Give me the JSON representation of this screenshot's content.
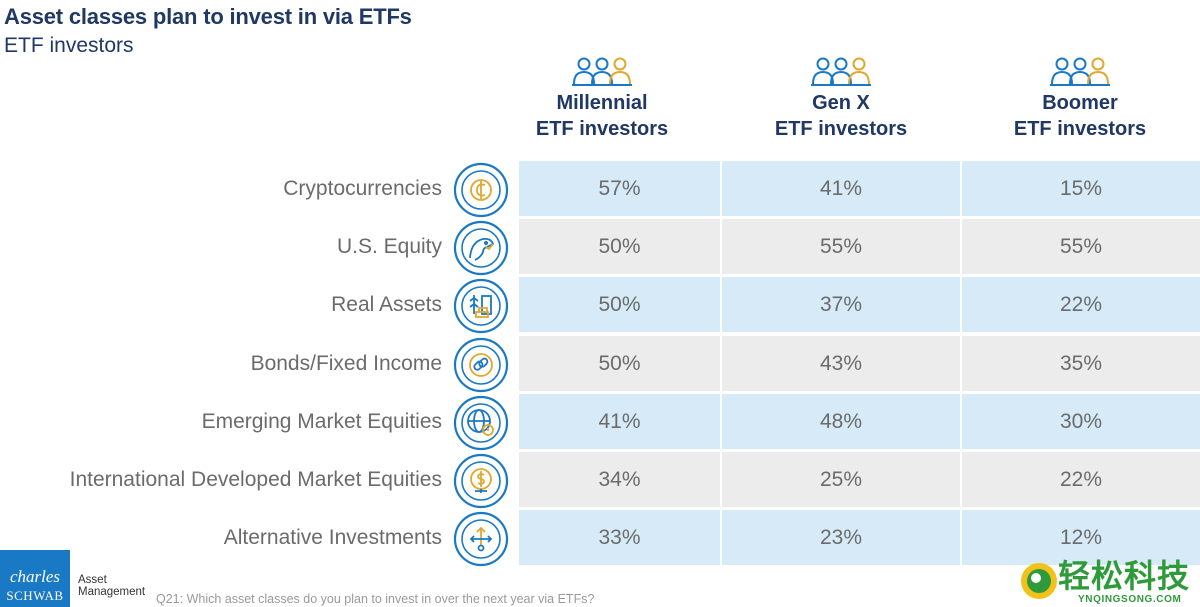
{
  "title": "Asset classes plan to invest in via ETFs",
  "subtitle": "ETF investors",
  "chart_data": {
    "type": "table",
    "columns": [
      {
        "line1": "Millennial",
        "line2": "ETF investors"
      },
      {
        "line1": "Gen X",
        "line2": "ETF investors"
      },
      {
        "line1": "Boomer",
        "line2": "ETF investors"
      }
    ],
    "rows": [
      {
        "label": "Cryptocurrencies",
        "icon": "crypto-coin-icon",
        "values": [
          "57%",
          "41%",
          "15%"
        ]
      },
      {
        "label": "U.S. Equity",
        "icon": "eagle-icon",
        "values": [
          "50%",
          "55%",
          "55%"
        ]
      },
      {
        "label": "Real Assets",
        "icon": "real-assets-icon",
        "values": [
          "50%",
          "37%",
          "22%"
        ]
      },
      {
        "label": "Bonds/Fixed Income",
        "icon": "chain-link-icon",
        "values": [
          "50%",
          "43%",
          "35%"
        ]
      },
      {
        "label": "Emerging Market Equities",
        "icon": "globe-search-icon",
        "values": [
          "41%",
          "48%",
          "30%"
        ]
      },
      {
        "label": "International Developed Market Equities",
        "icon": "globe-dollar-icon",
        "values": [
          "34%",
          "25%",
          "22%"
        ]
      },
      {
        "label": "Alternative Investments",
        "icon": "split-arrows-icon",
        "values": [
          "33%",
          "23%",
          "12%"
        ]
      }
    ]
  },
  "footnote": "Q21: Which asset classes do you plan to invest in over the next year via ETFs?",
  "logo": {
    "line1": "charles",
    "line2": "SCHWAB",
    "sub1": "Asset",
    "sub2": "Management"
  },
  "watermark": {
    "cn": "轻松科技",
    "en": "YNQINGSONG.COM"
  },
  "colors": {
    "navy": "#1f3864",
    "blue_row": "#d6ebf7",
    "gray_row": "#ececec",
    "icon_blue": "#1a79c4",
    "icon_gold": "#e0a82e"
  }
}
